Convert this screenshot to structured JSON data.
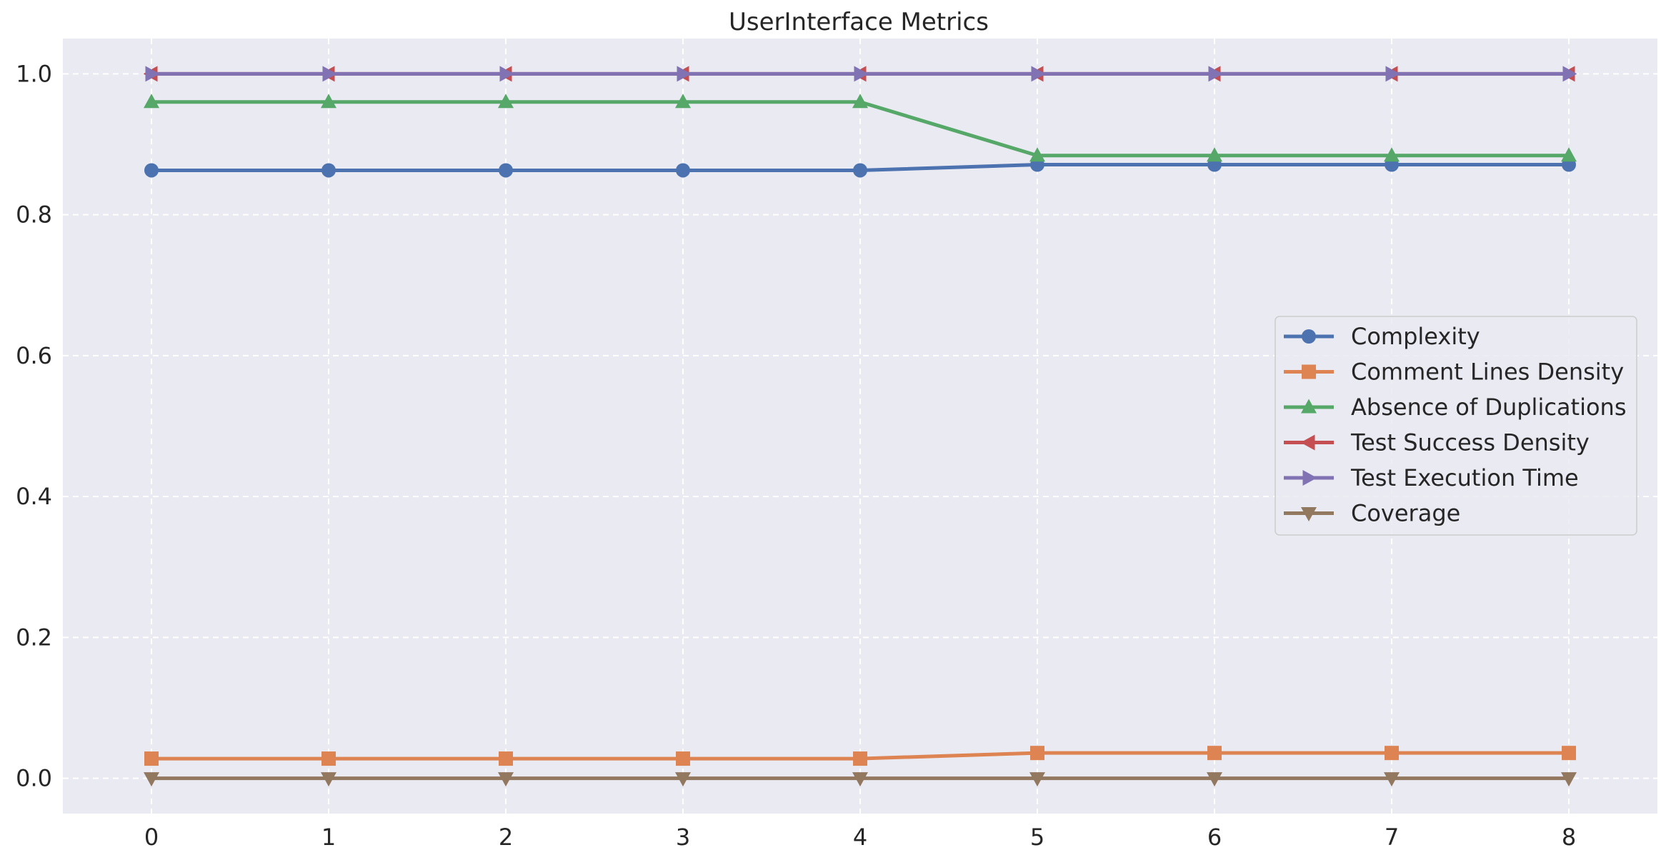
{
  "chart_data": {
    "type": "line",
    "title": "UserInterface Metrics",
    "xlabel": "",
    "ylabel": "",
    "x": [
      0,
      1,
      2,
      3,
      4,
      5,
      6,
      7,
      8
    ],
    "xlim": [
      -0.5,
      8.5
    ],
    "ylim": [
      -0.05,
      1.05
    ],
    "xticks": [
      "0",
      "1",
      "2",
      "3",
      "4",
      "5",
      "6",
      "7",
      "8"
    ],
    "yticks": [
      "0.0",
      "0.2",
      "0.4",
      "0.6",
      "0.8",
      "1.0"
    ],
    "grid": true,
    "legend_position": "center-right",
    "background": "#eaeaf2",
    "series": [
      {
        "name": "Complexity",
        "color": "#4c72b0",
        "marker": "circle",
        "values": [
          0.863,
          0.863,
          0.863,
          0.863,
          0.863,
          0.871,
          0.871,
          0.871,
          0.871
        ]
      },
      {
        "name": "Comment Lines Density",
        "color": "#dd8452",
        "marker": "square",
        "values": [
          0.028,
          0.028,
          0.028,
          0.028,
          0.028,
          0.036,
          0.036,
          0.036,
          0.036
        ]
      },
      {
        "name": "Absence of Duplications",
        "color": "#55a868",
        "marker": "triangle-up",
        "values": [
          0.96,
          0.96,
          0.96,
          0.96,
          0.96,
          0.884,
          0.884,
          0.884,
          0.884
        ]
      },
      {
        "name": "Test Success Density",
        "color": "#c44e52",
        "marker": "triangle-left",
        "values": [
          1.0,
          1.0,
          1.0,
          1.0,
          1.0,
          1.0,
          1.0,
          1.0,
          1.0
        ]
      },
      {
        "name": "Test Execution Time",
        "color": "#8172b3",
        "marker": "triangle-right",
        "values": [
          1.0,
          1.0,
          1.0,
          1.0,
          1.0,
          1.0,
          1.0,
          1.0,
          1.0
        ]
      },
      {
        "name": "Coverage",
        "color": "#937860",
        "marker": "triangle-down",
        "values": [
          0.0,
          0.0,
          0.0,
          0.0,
          0.0,
          0.0,
          0.0,
          0.0,
          0.0
        ]
      }
    ]
  }
}
